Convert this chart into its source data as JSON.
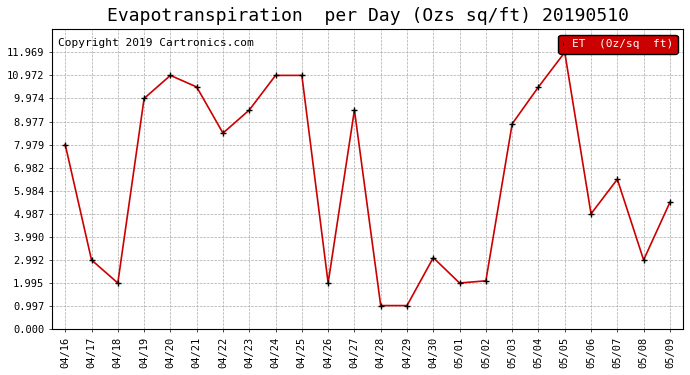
{
  "title": "Evapotranspiration  per Day (Ozs sq/ft) 20190510",
  "copyright": "Copyright 2019 Cartronics.com",
  "legend_label": "ET  (0z/sq  ft)",
  "x_labels": [
    "04/16",
    "04/17",
    "04/18",
    "04/19",
    "04/20",
    "04/21",
    "04/22",
    "04/23",
    "04/24",
    "04/25",
    "04/26",
    "04/27",
    "04/28",
    "04/29",
    "04/30",
    "05/01",
    "05/02",
    "05/03",
    "05/04",
    "05/05",
    "05/06",
    "05/07",
    "05/08",
    "05/09"
  ],
  "y_values": [
    7.979,
    2.992,
    1.995,
    9.974,
    10.972,
    10.472,
    8.477,
    9.474,
    10.972,
    10.972,
    1.995,
    9.474,
    1.02,
    1.02,
    3.09,
    1.995,
    2.09,
    8.877,
    10.472,
    11.969,
    4.987,
    6.482,
    2.992,
    5.484
  ],
  "line_color": "#cc0000",
  "marker_color": "#000000",
  "bg_color": "#ffffff",
  "grid_color": "#aaaaaa",
  "ylim": [
    0.0,
    12.966
  ],
  "yticks": [
    0.0,
    0.997,
    1.995,
    2.992,
    3.99,
    4.987,
    5.984,
    6.982,
    7.979,
    8.977,
    9.974,
    10.972,
    11.969
  ],
  "legend_bg": "#cc0000",
  "legend_text_color": "#ffffff",
  "title_fontsize": 13,
  "copyright_fontsize": 8,
  "axis_fontsize": 7.5
}
